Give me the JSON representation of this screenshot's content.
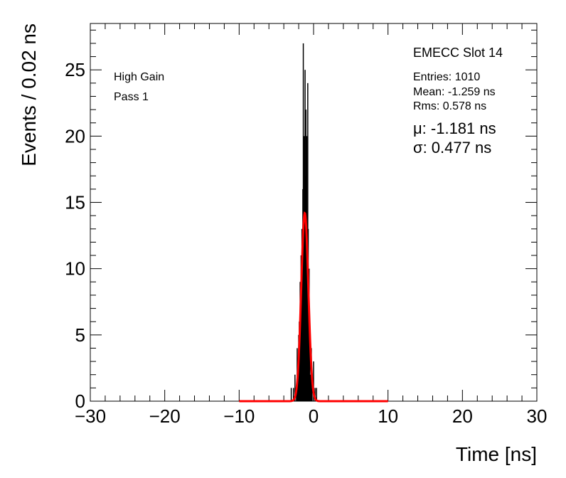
{
  "chart_data": {
    "type": "bar",
    "xlabel": "Time [ns]",
    "ylabel": "Events / 0.02 ns",
    "xlim": [
      -30,
      30
    ],
    "ylim": [
      0,
      28.5
    ],
    "x_ticks": [
      "−30",
      "−20",
      "−10",
      "0",
      "10",
      "20",
      "30"
    ],
    "x_tick_values": [
      -30,
      -20,
      -10,
      0,
      10,
      20,
      30
    ],
    "y_ticks": [
      "0",
      "5",
      "10",
      "15",
      "20",
      "25"
    ],
    "y_tick_values": [
      0,
      5,
      10,
      15,
      20,
      25
    ],
    "grid": false,
    "histogram_color": "#000000",
    "fit_color": "#ff0000",
    "histogram_bin_width": 0.02,
    "histogram": {
      "x": [
        -3.0,
        -2.7,
        -2.5,
        -2.3,
        -2.2,
        -2.1,
        -2.0,
        -1.92,
        -1.86,
        -1.8,
        -1.74,
        -1.68,
        -1.62,
        -1.56,
        -1.5,
        -1.44,
        -1.38,
        -1.32,
        -1.26,
        -1.2,
        -1.14,
        -1.08,
        -1.02,
        -0.96,
        -0.9,
        -0.84,
        -0.78,
        -0.72,
        -0.66,
        -0.6,
        -0.5,
        -0.4,
        -0.3,
        -0.2,
        0.0,
        0.2,
        0.4
      ],
      "y": [
        1,
        1,
        2,
        1,
        4,
        2,
        5,
        6,
        3,
        9,
        5,
        11,
        8,
        13,
        10,
        16,
        27,
        12,
        20,
        14,
        25,
        17,
        22,
        15,
        20,
        11,
        24,
        13,
        8,
        10,
        5,
        2,
        4,
        1,
        3,
        1,
        1
      ]
    },
    "fit": {
      "function": "gaussian",
      "mean": -1.181,
      "sigma": 0.477,
      "amplitude": 14.2,
      "range": [
        -10,
        10
      ]
    },
    "labels": {
      "gain": "High Gain",
      "pass": "Pass 1",
      "title": "EMECC Slot 14",
      "entries": "Entries: 1010",
      "mean": "Mean: -1.259 ns",
      "rms": "Rms: 0.578 ns",
      "mu": "μ: -1.181 ns",
      "sigma": "σ: 0.477 ns"
    }
  }
}
